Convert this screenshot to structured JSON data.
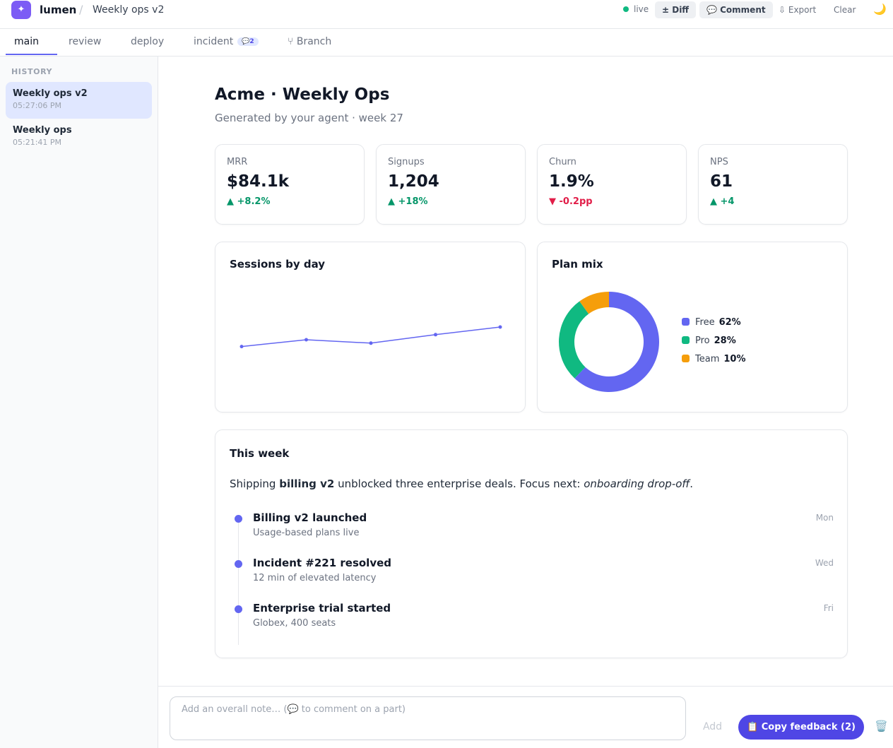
{
  "app": {
    "logo_glyph": "✦",
    "name": "lumen",
    "separator": "/",
    "doc_title": "Weekly ops v2"
  },
  "toolbar": {
    "live_label": "live",
    "diff_label": "± Diff",
    "comment_label": "💬 Comment",
    "export_label": "⇩ Export",
    "clear_label": "Clear",
    "theme_icon": "🌙"
  },
  "tabs": [
    {
      "label": "main",
      "active": true
    },
    {
      "label": "review"
    },
    {
      "label": "deploy"
    },
    {
      "label": "incident",
      "badge": "💬2"
    },
    {
      "label": "⑂ Branch"
    }
  ],
  "sidebar": {
    "heading": "HISTORY",
    "items": [
      {
        "title": "Weekly ops v2",
        "time": "05:27:06 PM",
        "active": true
      },
      {
        "title": "Weekly ops",
        "time": "05:21:41 PM"
      }
    ]
  },
  "report": {
    "title": "Acme · Weekly Ops",
    "subtitle": "Generated by your agent · week 27"
  },
  "kpis": [
    {
      "label": "MRR",
      "value": "$84.1k",
      "delta": "▲ +8.2%",
      "trend": "up"
    },
    {
      "label": "Signups",
      "value": "1,204",
      "delta": "▲ +18%",
      "trend": "up"
    },
    {
      "label": "Churn",
      "value": "1.9%",
      "delta": "▼ -0.2pp",
      "trend": "down"
    },
    {
      "label": "NPS",
      "value": "61",
      "delta": "▲ +4",
      "trend": "up"
    }
  ],
  "chart_data": [
    {
      "type": "line",
      "title": "Sessions by day",
      "x": [
        1,
        2,
        3,
        4,
        5
      ],
      "values": [
        32,
        40,
        36,
        46,
        55
      ],
      "ylim": [
        0,
        100
      ],
      "color": "#6366f1",
      "grid": false,
      "xlabel": "",
      "ylabel": ""
    },
    {
      "type": "pie",
      "donut": true,
      "title": "Plan mix",
      "legend_position": "right",
      "labels": [
        "Free",
        "Pro",
        "Team"
      ],
      "value_labels": [
        "62%",
        "28%",
        "10%"
      ],
      "values": [
        62,
        28,
        10
      ],
      "colors": [
        "#6366f1",
        "#10b981",
        "#f59e0b"
      ]
    }
  ],
  "this_week": {
    "title": "This week",
    "summary_before": "Shipping ",
    "summary_bold": "billing v2",
    "summary_middle": " unblocked three enterprise deals. Focus next: ",
    "summary_italic": "onboarding drop-off",
    "summary_after": ".",
    "events": [
      {
        "title": "Billing v2 launched",
        "desc": "Usage-based plans live",
        "day": "Mon"
      },
      {
        "title": "Incident #221 resolved",
        "desc": "12 min of elevated latency",
        "day": "Wed"
      },
      {
        "title": "Enterprise trial started",
        "desc": "Globex, 400 seats",
        "day": "Fri"
      }
    ]
  },
  "footer": {
    "note_placeholder": "Add an overall note… (💬 to comment on a part)",
    "add_label": "Add",
    "copy_label": "📋 Copy feedback (2)",
    "trash_icon": "🗑️"
  },
  "colors": {
    "accent": "#6366f1",
    "primary_button": "#4f46e5",
    "positive": "#059669",
    "negative": "#e11d48"
  }
}
